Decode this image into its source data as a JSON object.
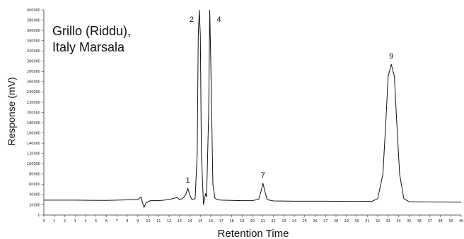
{
  "chart_data": {
    "type": "line",
    "title": "",
    "annotation_lines": [
      "Grillo (Riddu),",
      "Italy Marsala"
    ],
    "xlabel": "Retention Time",
    "ylabel": "Response (mV)",
    "xlim": [
      0,
      40
    ],
    "ylim": [
      0,
      400000
    ],
    "x_ticks": [
      0,
      1,
      2,
      3,
      4,
      5,
      6,
      7,
      8,
      9,
      10,
      11,
      12,
      13,
      14,
      15,
      16,
      17,
      18,
      19,
      20,
      21,
      22,
      23,
      24,
      25,
      26,
      27,
      28,
      29,
      30,
      31,
      32,
      33,
      34,
      35,
      36,
      37,
      38,
      39,
      40
    ],
    "y_ticks": [
      0,
      20000,
      40000,
      60000,
      80000,
      100000,
      120000,
      140000,
      160000,
      180000,
      200000,
      220000,
      240000,
      260000,
      280000,
      300000,
      320000,
      340000,
      360000,
      380000,
      400000
    ],
    "grid": false,
    "baseline": 28000,
    "peaks": [
      {
        "label": "1",
        "rt": 13.8,
        "height": 52000
      },
      {
        "label": "2",
        "rt": 14.9,
        "height": 400000
      },
      {
        "label": "4",
        "rt": 15.9,
        "height": 400000
      },
      {
        "label": "7",
        "rt": 21.0,
        "height": 62000
      },
      {
        "label": "9",
        "rt": 33.3,
        "height": 294000
      }
    ],
    "series": [
      {
        "x": [
          0,
          3,
          6,
          9.0,
          9.3,
          9.5,
          9.6,
          9.8,
          10.2,
          11,
          12.0,
          12.5,
          12.8,
          13.0,
          13.3,
          13.6,
          13.8,
          14.0,
          14.2,
          14.5,
          14.7,
          14.8,
          14.9,
          15.0,
          15.1,
          15.3,
          15.5,
          15.6,
          15.8,
          15.9,
          16.0,
          16.2,
          16.4,
          16.6,
          17,
          18,
          19,
          20,
          20.6,
          20.8,
          21.0,
          21.2,
          21.4,
          22,
          24,
          27,
          30,
          31.5,
          32.0,
          32.5,
          32.8,
          33.0,
          33.3,
          33.6,
          33.8,
          34.1,
          34.5,
          35,
          37,
          40
        ],
        "y": [
          29000,
          29000,
          28500,
          30000,
          35000,
          22000,
          15000,
          24000,
          28000,
          28000,
          30000,
          33000,
          34000,
          30000,
          32000,
          40000,
          52000,
          38000,
          30000,
          32000,
          120000,
          350000,
          400000,
          350000,
          120000,
          20000,
          42000,
          35000,
          200000,
          400000,
          300000,
          60000,
          33000,
          30000,
          29000,
          28500,
          28000,
          28000,
          31000,
          45000,
          62000,
          45000,
          30000,
          27500,
          27000,
          27000,
          26500,
          27000,
          32000,
          80000,
          190000,
          270000,
          294000,
          270000,
          190000,
          80000,
          32000,
          26000,
          25500,
          25000
        ]
      }
    ]
  }
}
